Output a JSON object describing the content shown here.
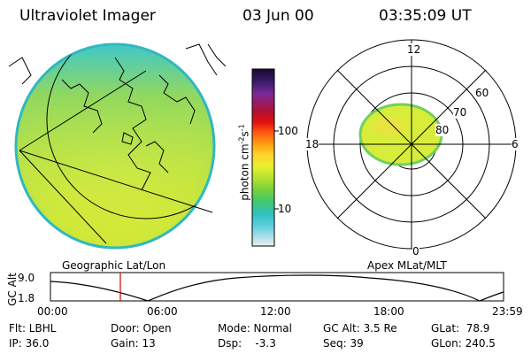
{
  "header": {
    "instrument": "Ultraviolet Imager",
    "date": "03 Jun 00",
    "time": "03:35:09 UT"
  },
  "colorbar": {
    "unit_label": "photon cm",
    "unit_exp1": "-2",
    "unit_s": "s",
    "unit_exp2": "-1",
    "ticks": [
      "100",
      "10"
    ],
    "colors": [
      "#1a0a2e",
      "#3a1a6a",
      "#7a2a9a",
      "#b01030",
      "#e01010",
      "#ff5a10",
      "#ff9a10",
      "#ffd02a",
      "#e8f030",
      "#b0e030",
      "#70d040",
      "#40c870",
      "#30c0c0",
      "#60d0e0",
      "#b0e0e8",
      "#e8f0f0"
    ]
  },
  "left_panel": {
    "label": "Geographic Lat/Lon",
    "image_fill": "#d8ec3a"
  },
  "right_panel": {
    "label": "Apex MLat/MLT",
    "mlt_labels": {
      "top": "12",
      "left": "18",
      "right": "6",
      "bottom": "0"
    },
    "lat_labels": [
      "60",
      "70",
      "80"
    ]
  },
  "timeline": {
    "y_label": "GC Alt",
    "y_ticks": [
      "9.0",
      "1.8"
    ],
    "x_ticks": [
      "00:00",
      "06:00",
      "12:00",
      "18:00",
      "23:59"
    ],
    "marker_color": "#d00000",
    "current_time_hours": 3.58
  },
  "status": {
    "flt": "Flt: LBHL",
    "ip": "IP: 36.0",
    "door": "Door: Open",
    "gain": "Gain: 13",
    "mode": "Mode: Normal",
    "dsp": "Dsp:    -3.3",
    "gcalt": "GC Alt: 3.5 Re",
    "seq": "Seq: 39",
    "glat": "GLat:  78.9",
    "glon": "GLon: 240.5"
  }
}
